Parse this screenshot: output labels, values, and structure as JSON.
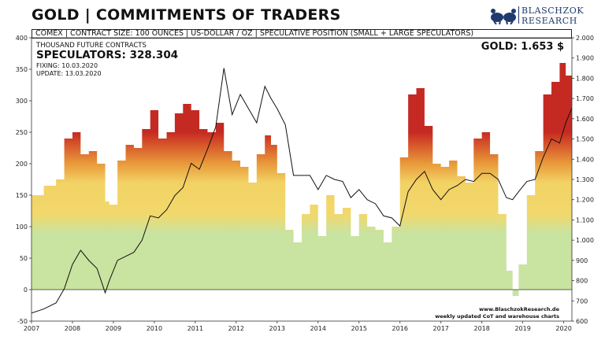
{
  "title": "GOLD | COMMITMENTS OF TRADERS",
  "logo": {
    "line1": "BLASCHZOK",
    "line2": "RESEARCH",
    "colors": {
      "primary": "#1f3b6e"
    }
  },
  "header_bar": "COMEX  |  CONTRACT SIZE: 100 OUNCES  |  US-DOLLAR / OZ  |  SPECULATIVE  POSITION (SMALL + LARGE SPECULATORS)",
  "info": {
    "units": "THOUSAND FUTURE CONTRACTS",
    "speculators": "SPECULATORS: 328.304",
    "fixing": "FIXING: 10.03.2020",
    "update": "UPDATE: 13.03.2020",
    "gold_price": "GOLD: 1.653 $"
  },
  "credits": {
    "line1": "www.BlaschzokResearch.de",
    "line2": "weekly updated CoT and warehouse charts"
  },
  "chart_data": {
    "type": "bar",
    "title": "GOLD | COMMITMENTS OF TRADERS",
    "xlabel": "",
    "ylabel": "Thousand future contracts",
    "ylabel_right": "US-Dollar / oz",
    "ylim": [
      -50,
      400
    ],
    "ylim_right": [
      600,
      2000
    ],
    "yticks": [
      -50,
      0,
      50,
      100,
      150,
      200,
      250,
      300,
      350,
      400
    ],
    "yticks_right": [
      600,
      700,
      800,
      900,
      1000,
      1100,
      1200,
      1300,
      1400,
      1500,
      1600,
      1700,
      1800,
      1900,
      2000
    ],
    "yticks_right_labels": [
      "600",
      "700",
      "800",
      "900",
      "1.000",
      "1.100",
      "1.200",
      "1.300",
      "1.400",
      "1.500",
      "1.600",
      "1.700",
      "1.800",
      "1.900",
      "2.000"
    ],
    "xlim": [
      2007.0,
      2020.2
    ],
    "xticks": [
      "2007",
      "2008",
      "2009",
      "2010",
      "2011",
      "2012",
      "2013",
      "2014",
      "2015",
      "2016",
      "2017",
      "2018",
      "2019",
      "2020"
    ],
    "color_scale": {
      "low": "#c9e3a0",
      "mid": "#f2d264",
      "high_mid": "#e89a3a",
      "high": "#c42a22"
    },
    "line_color": "#111111",
    "series": [
      {
        "name": "Speculative position (small + large speculators)",
        "kind": "bar",
        "x": [
          2007.0,
          2007.3,
          2007.6,
          2007.8,
          2008.0,
          2008.2,
          2008.4,
          2008.6,
          2008.8,
          2008.9,
          2009.1,
          2009.3,
          2009.5,
          2009.7,
          2009.9,
          2010.1,
          2010.3,
          2010.5,
          2010.7,
          2010.9,
          2011.1,
          2011.3,
          2011.5,
          2011.7,
          2011.9,
          2012.1,
          2012.3,
          2012.5,
          2012.7,
          2012.85,
          2013.0,
          2013.2,
          2013.4,
          2013.6,
          2013.8,
          2014.0,
          2014.2,
          2014.4,
          2014.6,
          2014.8,
          2015.0,
          2015.2,
          2015.4,
          2015.6,
          2015.8,
          2016.0,
          2016.2,
          2016.4,
          2016.6,
          2016.8,
          2017.0,
          2017.2,
          2017.4,
          2017.6,
          2017.8,
          2018.0,
          2018.2,
          2018.4,
          2018.6,
          2018.75,
          2018.9,
          2019.1,
          2019.3,
          2019.5,
          2019.7,
          2019.9,
          2020.05,
          2020.2
        ],
        "values": [
          150,
          165,
          175,
          240,
          250,
          215,
          220,
          200,
          140,
          135,
          205,
          230,
          225,
          255,
          285,
          240,
          250,
          280,
          295,
          285,
          255,
          250,
          265,
          220,
          205,
          195,
          170,
          215,
          245,
          230,
          185,
          95,
          75,
          120,
          135,
          85,
          150,
          120,
          130,
          85,
          120,
          100,
          95,
          75,
          100,
          210,
          310,
          320,
          260,
          200,
          195,
          205,
          180,
          170,
          240,
          250,
          215,
          120,
          30,
          -10,
          40,
          150,
          220,
          310,
          330,
          360,
          340,
          330
        ]
      },
      {
        "name": "Gold price (USD/oz)",
        "kind": "line",
        "axis": "right",
        "x": [
          2007.0,
          2007.3,
          2007.6,
          2007.8,
          2008.0,
          2008.2,
          2008.4,
          2008.6,
          2008.8,
          2008.9,
          2009.1,
          2009.3,
          2009.5,
          2009.7,
          2009.9,
          2010.1,
          2010.3,
          2010.5,
          2010.7,
          2010.9,
          2011.1,
          2011.3,
          2011.5,
          2011.7,
          2011.9,
          2012.1,
          2012.3,
          2012.5,
          2012.7,
          2012.85,
          2013.0,
          2013.2,
          2013.4,
          2013.6,
          2013.8,
          2014.0,
          2014.2,
          2014.4,
          2014.6,
          2014.8,
          2015.0,
          2015.2,
          2015.4,
          2015.6,
          2015.8,
          2016.0,
          2016.2,
          2016.4,
          2016.6,
          2016.8,
          2017.0,
          2017.2,
          2017.4,
          2017.6,
          2017.8,
          2018.0,
          2018.2,
          2018.4,
          2018.6,
          2018.75,
          2018.9,
          2019.1,
          2019.3,
          2019.5,
          2019.7,
          2019.9,
          2020.05,
          2020.2
        ],
        "values": [
          640,
          660,
          690,
          760,
          880,
          950,
          900,
          860,
          740,
          800,
          900,
          920,
          940,
          1000,
          1120,
          1110,
          1150,
          1220,
          1260,
          1380,
          1350,
          1450,
          1560,
          1850,
          1620,
          1720,
          1650,
          1580,
          1760,
          1700,
          1650,
          1570,
          1320,
          1320,
          1320,
          1250,
          1320,
          1300,
          1290,
          1210,
          1250,
          1200,
          1180,
          1120,
          1110,
          1070,
          1240,
          1300,
          1340,
          1250,
          1200,
          1250,
          1270,
          1300,
          1290,
          1330,
          1330,
          1300,
          1210,
          1200,
          1240,
          1290,
          1300,
          1410,
          1500,
          1480,
          1580,
          1653
        ]
      }
    ]
  }
}
